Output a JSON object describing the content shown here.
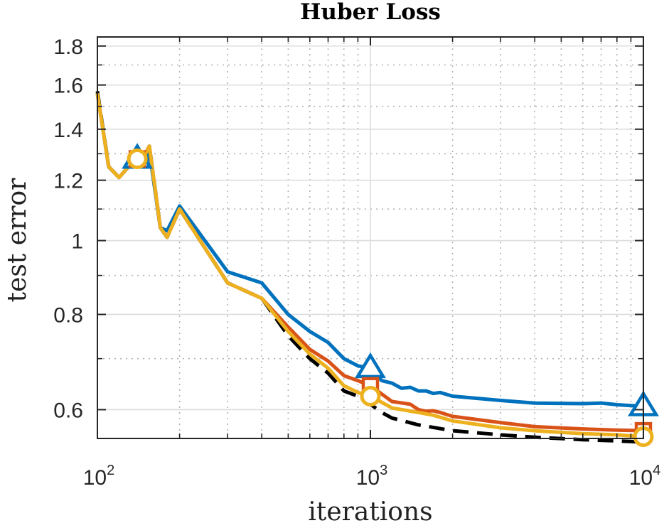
{
  "chart_data": {
    "type": "line",
    "title": "Huber Loss",
    "xlabel": "iterations",
    "ylabel": "test error",
    "xscale": "log",
    "yscale": "log",
    "xlim": [
      100,
      10000
    ],
    "ylim": [
      0.55,
      1.85
    ],
    "grid": true,
    "minor_grid": true,
    "x_ticks": [
      {
        "value": 100,
        "base": "10",
        "exp": "2"
      },
      {
        "value": 1000,
        "base": "10",
        "exp": "3"
      },
      {
        "value": 10000,
        "base": "10",
        "exp": "4"
      }
    ],
    "y_ticks": [
      {
        "value": 0.6,
        "label": "0.6"
      },
      {
        "value": 0.8,
        "label": "0.8"
      },
      {
        "value": 1.0,
        "label": "1"
      },
      {
        "value": 1.2,
        "label": "1.2"
      },
      {
        "value": 1.4,
        "label": "1.4"
      },
      {
        "value": 1.6,
        "label": "1.6"
      },
      {
        "value": 1.8,
        "label": "1.8"
      }
    ],
    "y_minor": [
      0.55,
      0.7,
      0.9,
      1.1,
      1.3,
      1.5,
      1.7
    ],
    "series": [
      {
        "name": "blue",
        "color": "#0072BD",
        "dash": "solid",
        "marker": "triangle",
        "marker_x": [
          140,
          1000,
          10000
        ],
        "points": [
          [
            100,
            1.56
          ],
          [
            110,
            1.25
          ],
          [
            120,
            1.21
          ],
          [
            130,
            1.25
          ],
          [
            140,
            1.28
          ],
          [
            150,
            1.25
          ],
          [
            155,
            1.31
          ],
          [
            170,
            1.04
          ],
          [
            180,
            1.03
          ],
          [
            200,
            1.11
          ],
          [
            300,
            0.91
          ],
          [
            400,
            0.88
          ],
          [
            500,
            0.8
          ],
          [
            600,
            0.76
          ],
          [
            700,
            0.735
          ],
          [
            800,
            0.7
          ],
          [
            900,
            0.685
          ],
          [
            1000,
            0.68
          ],
          [
            1100,
            0.655
          ],
          [
            1200,
            0.65
          ],
          [
            1300,
            0.64
          ],
          [
            1400,
            0.642
          ],
          [
            1500,
            0.635
          ],
          [
            1600,
            0.635
          ],
          [
            1700,
            0.63
          ],
          [
            1800,
            0.632
          ],
          [
            2000,
            0.625
          ],
          [
            3000,
            0.617
          ],
          [
            4000,
            0.612
          ],
          [
            6000,
            0.611
          ],
          [
            7000,
            0.612
          ],
          [
            8000,
            0.609
          ],
          [
            10000,
            0.606
          ]
        ]
      },
      {
        "name": "red",
        "color": "#D95319",
        "dash": "solid",
        "marker": "square",
        "marker_x": [
          140,
          1000,
          10000
        ],
        "points": [
          [
            100,
            1.56
          ],
          [
            110,
            1.25
          ],
          [
            120,
            1.21
          ],
          [
            130,
            1.25
          ],
          [
            140,
            1.28
          ],
          [
            150,
            1.3
          ],
          [
            155,
            1.33
          ],
          [
            170,
            1.04
          ],
          [
            180,
            1.01
          ],
          [
            200,
            1.1
          ],
          [
            300,
            0.88
          ],
          [
            400,
            0.84
          ],
          [
            500,
            0.77
          ],
          [
            600,
            0.72
          ],
          [
            700,
            0.695
          ],
          [
            800,
            0.665
          ],
          [
            900,
            0.655
          ],
          [
            1000,
            0.645
          ],
          [
            1200,
            0.615
          ],
          [
            1400,
            0.61
          ],
          [
            1500,
            0.6
          ],
          [
            1600,
            0.597
          ],
          [
            1700,
            0.598
          ],
          [
            1800,
            0.595
          ],
          [
            2000,
            0.588
          ],
          [
            3000,
            0.577
          ],
          [
            4000,
            0.57
          ],
          [
            6000,
            0.566
          ],
          [
            8000,
            0.564
          ],
          [
            10000,
            0.563
          ]
        ]
      },
      {
        "name": "black",
        "color": "#000000",
        "dash": "dashed",
        "marker": "none",
        "marker_x": [],
        "points": [
          [
            100,
            1.57
          ],
          [
            110,
            1.25
          ],
          [
            120,
            1.21
          ],
          [
            130,
            1.25
          ],
          [
            140,
            1.28
          ],
          [
            150,
            1.3
          ],
          [
            155,
            1.33
          ],
          [
            170,
            1.04
          ],
          [
            180,
            1.01
          ],
          [
            200,
            1.1
          ],
          [
            300,
            0.88
          ],
          [
            400,
            0.84
          ],
          [
            500,
            0.75
          ],
          [
            600,
            0.7
          ],
          [
            700,
            0.67
          ],
          [
            800,
            0.635
          ],
          [
            900,
            0.625
          ],
          [
            1000,
            0.61
          ],
          [
            1100,
            0.595
          ],
          [
            1200,
            0.585
          ],
          [
            1500,
            0.573
          ],
          [
            2000,
            0.563
          ],
          [
            3000,
            0.556
          ],
          [
            4000,
            0.552
          ],
          [
            6000,
            0.548
          ],
          [
            8000,
            0.546
          ],
          [
            10000,
            0.544
          ]
        ]
      },
      {
        "name": "yellow",
        "color": "#EDB120",
        "dash": "solid",
        "marker": "circle",
        "marker_x": [
          140,
          1000,
          10000
        ],
        "points": [
          [
            100,
            1.56
          ],
          [
            110,
            1.25
          ],
          [
            120,
            1.21
          ],
          [
            130,
            1.25
          ],
          [
            140,
            1.28
          ],
          [
            150,
            1.3
          ],
          [
            155,
            1.33
          ],
          [
            170,
            1.04
          ],
          [
            180,
            1.01
          ],
          [
            200,
            1.1
          ],
          [
            300,
            0.88
          ],
          [
            400,
            0.84
          ],
          [
            500,
            0.76
          ],
          [
            600,
            0.71
          ],
          [
            700,
            0.68
          ],
          [
            800,
            0.645
          ],
          [
            900,
            0.632
          ],
          [
            1000,
            0.625
          ],
          [
            1200,
            0.603
          ],
          [
            1500,
            0.595
          ],
          [
            1700,
            0.59
          ],
          [
            2000,
            0.58
          ],
          [
            3000,
            0.568
          ],
          [
            4000,
            0.563
          ],
          [
            6000,
            0.558
          ],
          [
            8000,
            0.556
          ],
          [
            10000,
            0.553
          ]
        ]
      }
    ]
  }
}
